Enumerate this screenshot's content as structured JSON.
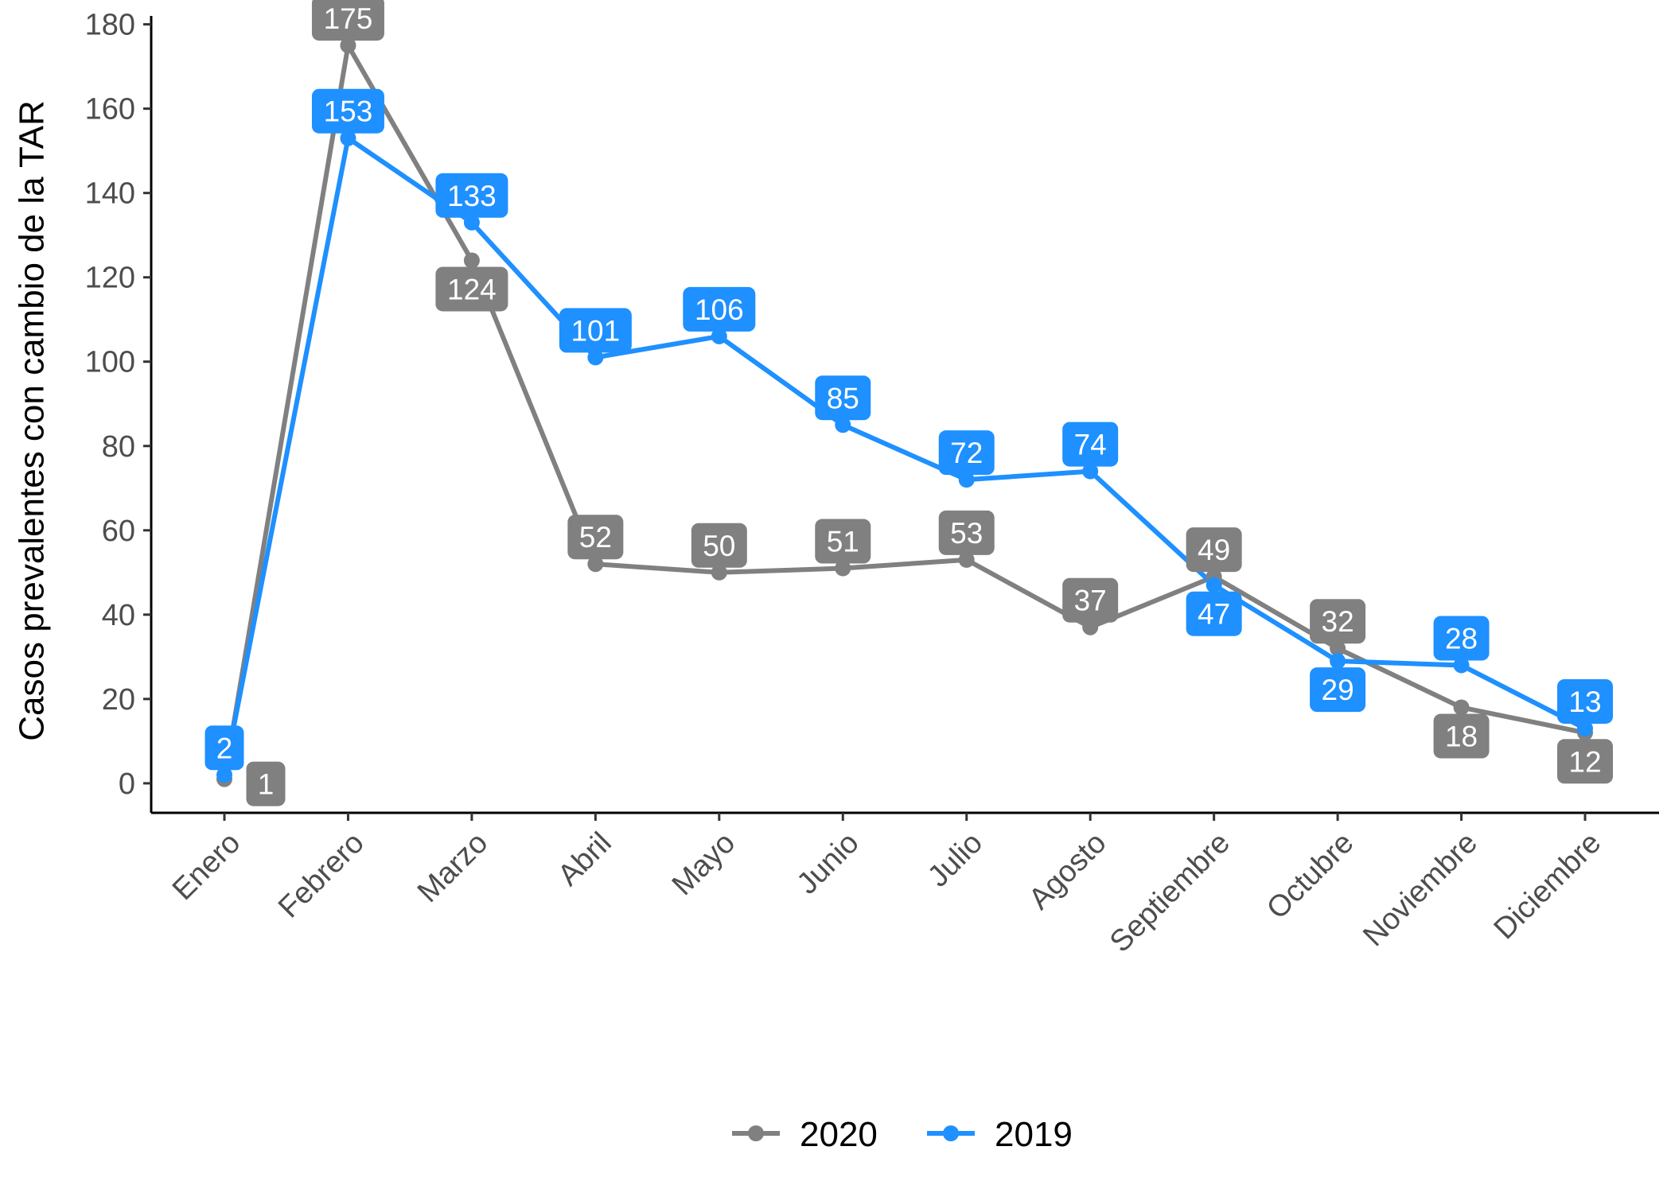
{
  "chart_data": {
    "type": "line",
    "title": "",
    "xlabel": "",
    "ylabel": "Casos prevalentes con cambio de la TAR",
    "categories": [
      "Enero",
      "Febrero",
      "Marzo",
      "Abril",
      "Mayo",
      "Junio",
      "Julio",
      "Agosto",
      "Septiembre",
      "Octubre",
      "Noviembre",
      "Diciembre"
    ],
    "series": [
      {
        "name": "2020",
        "color": "#808080",
        "values": [
          1,
          175,
          124,
          52,
          50,
          51,
          53,
          37,
          49,
          32,
          18,
          12
        ],
        "label_side": [
          "right",
          "above",
          "below",
          "above",
          "above",
          "above",
          "above",
          "above",
          "above",
          "above",
          "below",
          "below"
        ]
      },
      {
        "name": "2019",
        "color": "#1E90FF",
        "values": [
          2,
          153,
          133,
          101,
          106,
          85,
          72,
          74,
          47,
          29,
          28,
          13
        ],
        "label_side": [
          "above",
          "above",
          "above",
          "above",
          "above",
          "above",
          "above",
          "above",
          "below",
          "below",
          "above",
          "above"
        ]
      }
    ],
    "ylim": [
      -7,
      182
    ],
    "yticks": [
      0,
      20,
      40,
      60,
      80,
      100,
      120,
      140,
      160,
      180
    ],
    "grid": false,
    "legend_position": "bottom"
  }
}
